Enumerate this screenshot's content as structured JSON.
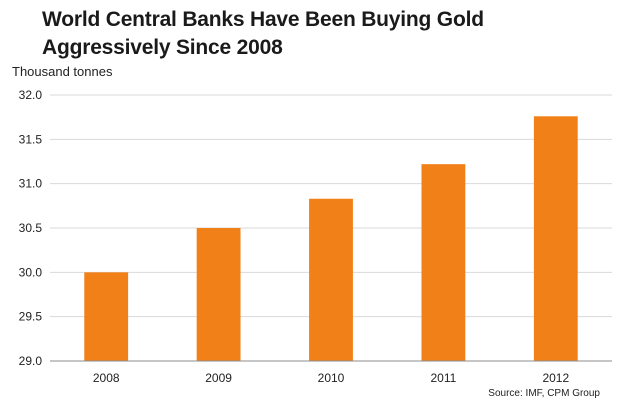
{
  "chart_data": {
    "type": "bar",
    "title": "World Central Banks Have Been Buying Gold Aggressively Since 2008",
    "title_lines": [
      "World Central Banks Have Been Buying Gold",
      "Aggressively Since 2008"
    ],
    "ylabel": "Thousand tonnes",
    "xlabel": "",
    "categories": [
      "2008",
      "2009",
      "2010",
      "2011",
      "2012"
    ],
    "values": [
      30.0,
      30.5,
      30.83,
      31.22,
      31.76
    ],
    "ylim": [
      29.0,
      32.0
    ],
    "yticks": [
      "29.0",
      "29.5",
      "30.0",
      "30.5",
      "31.0",
      "31.5",
      "32.0"
    ],
    "grid": true,
    "legend": "none",
    "bar_color": "#f28018",
    "source": "Source: IMF, CPM Group"
  }
}
